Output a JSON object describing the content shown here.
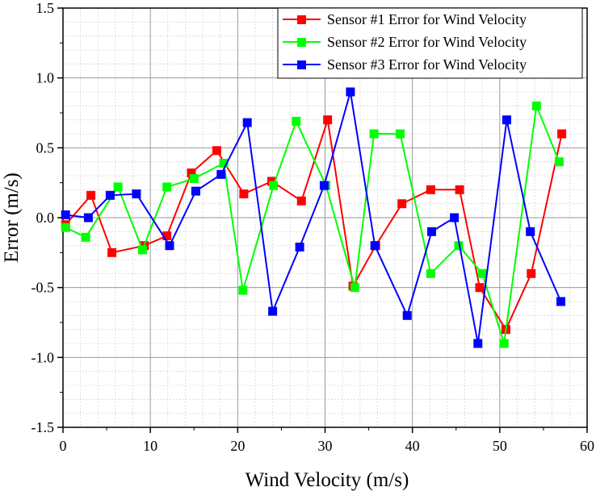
{
  "chart_data": {
    "type": "line",
    "title": "",
    "xlabel": "Wind Velocity (m/s)",
    "ylabel": "Error (m/s)",
    "xlim": [
      0,
      60
    ],
    "ylim": [
      -1.5,
      1.5
    ],
    "x_ticks": [
      0,
      10,
      20,
      30,
      40,
      50,
      60
    ],
    "y_ticks": [
      -1.5,
      -1.0,
      -0.5,
      0.0,
      0.5,
      1.0,
      1.5
    ],
    "x_tick_labels": [
      "0",
      "10",
      "20",
      "30",
      "40",
      "50",
      "60"
    ],
    "y_tick_labels": [
      "-1.5",
      "-1.0",
      "-0.5",
      "0.0",
      "0.5",
      "1.0",
      "1.5"
    ],
    "grid": true,
    "minor_grid": true,
    "legend_position": "top-right",
    "series": [
      {
        "name": "Sensor #1 Error for Wind Velocity",
        "color": "#ff0000",
        "x": [
          0.3,
          3.2,
          5.6,
          9.3,
          11.9,
          14.7,
          17.6,
          20.7,
          23.9,
          27.3,
          30.3,
          33.2,
          35.8,
          38.8,
          42.1,
          45.4,
          47.7,
          50.7,
          53.6,
          57.1
        ],
        "y": [
          -0.05,
          0.16,
          -0.25,
          -0.2,
          -0.13,
          0.32,
          0.48,
          0.17,
          0.26,
          0.12,
          0.7,
          -0.49,
          -0.2,
          0.1,
          0.2,
          0.2,
          -0.5,
          -0.8,
          -0.4,
          0.6
        ]
      },
      {
        "name": "Sensor #2 Error for Wind Velocity",
        "color": "#00ff00",
        "x": [
          0.3,
          2.6,
          6.3,
          9.1,
          11.9,
          15.0,
          18.4,
          20.6,
          24.1,
          26.7,
          30.1,
          33.4,
          35.6,
          38.6,
          42.1,
          45.3,
          48.0,
          50.5,
          54.2,
          56.8
        ],
        "y": [
          -0.07,
          -0.14,
          0.22,
          -0.23,
          0.22,
          0.28,
          0.39,
          -0.52,
          0.23,
          0.69,
          0.23,
          -0.5,
          0.6,
          0.6,
          -0.4,
          -0.2,
          -0.4,
          -0.9,
          0.8,
          0.4
        ]
      },
      {
        "name": "Sensor #3 Error for Wind Velocity",
        "color": "#0000ff",
        "x": [
          0.3,
          2.9,
          5.4,
          8.4,
          12.2,
          15.2,
          18.1,
          21.1,
          24.0,
          27.1,
          29.9,
          32.9,
          35.7,
          39.4,
          42.2,
          44.8,
          47.5,
          50.8,
          53.5,
          57.0
        ],
        "y": [
          0.02,
          0.0,
          0.16,
          0.17,
          -0.2,
          0.19,
          0.31,
          0.68,
          -0.67,
          -0.21,
          0.23,
          0.9,
          -0.2,
          -0.7,
          -0.1,
          0.0,
          -0.9,
          0.7,
          -0.1,
          -0.6
        ]
      }
    ]
  }
}
